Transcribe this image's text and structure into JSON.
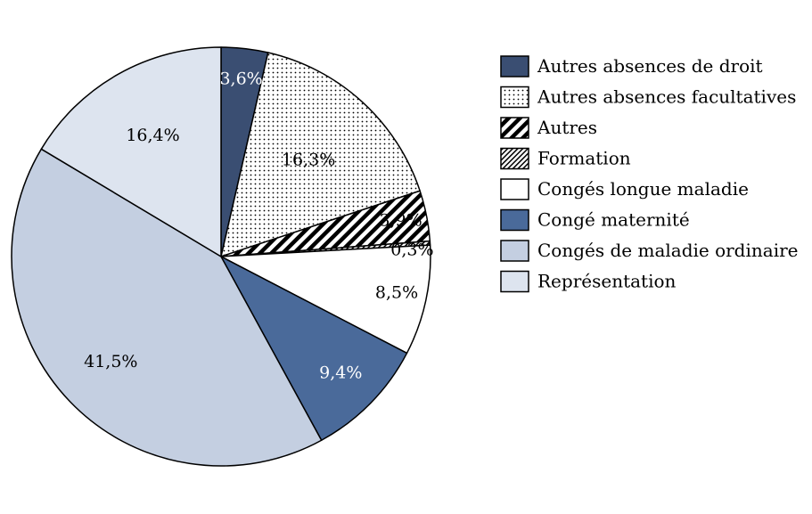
{
  "chart_data": {
    "type": "pie",
    "title": "",
    "legend_position": "right",
    "slices": [
      {
        "name": "Autres absences de droit",
        "value": 3.6,
        "label": "3,6%",
        "fill": "#3a4e72",
        "pattern": "solid",
        "label_color": "#ffffff"
      },
      {
        "name": "Autres absences facultatives",
        "value": 16.3,
        "label": "16,3%",
        "fill": "#ffffff",
        "pattern": "dots",
        "label_color": "#000000"
      },
      {
        "name": "Autres",
        "value": 3.9,
        "label": "3,9%",
        "fill": "#ffffff",
        "pattern": "thick-diagonal",
        "label_color": "#000000"
      },
      {
        "name": "Formation",
        "value": 0.3,
        "label": "0,3%",
        "fill": "#ffffff",
        "pattern": "fine-diagonal",
        "label_color": "#000000"
      },
      {
        "name": "Congés longue maladie",
        "value": 8.5,
        "label": "8,5%",
        "fill": "#ffffff",
        "pattern": "solid",
        "label_color": "#000000"
      },
      {
        "name": "Congé maternité",
        "value": 9.4,
        "label": "9,4%",
        "fill": "#4a6a9a",
        "pattern": "solid",
        "label_color": "#ffffff"
      },
      {
        "name": "Congés de maladie ordinaire",
        "value": 41.5,
        "label": "41,5%",
        "fill": "#c4cfe1",
        "pattern": "solid",
        "label_color": "#000000"
      },
      {
        "name": "Représentation",
        "value": 16.4,
        "label": "16,4%",
        "fill": "#dde4ef",
        "pattern": "solid",
        "label_color": "#000000"
      }
    ]
  }
}
